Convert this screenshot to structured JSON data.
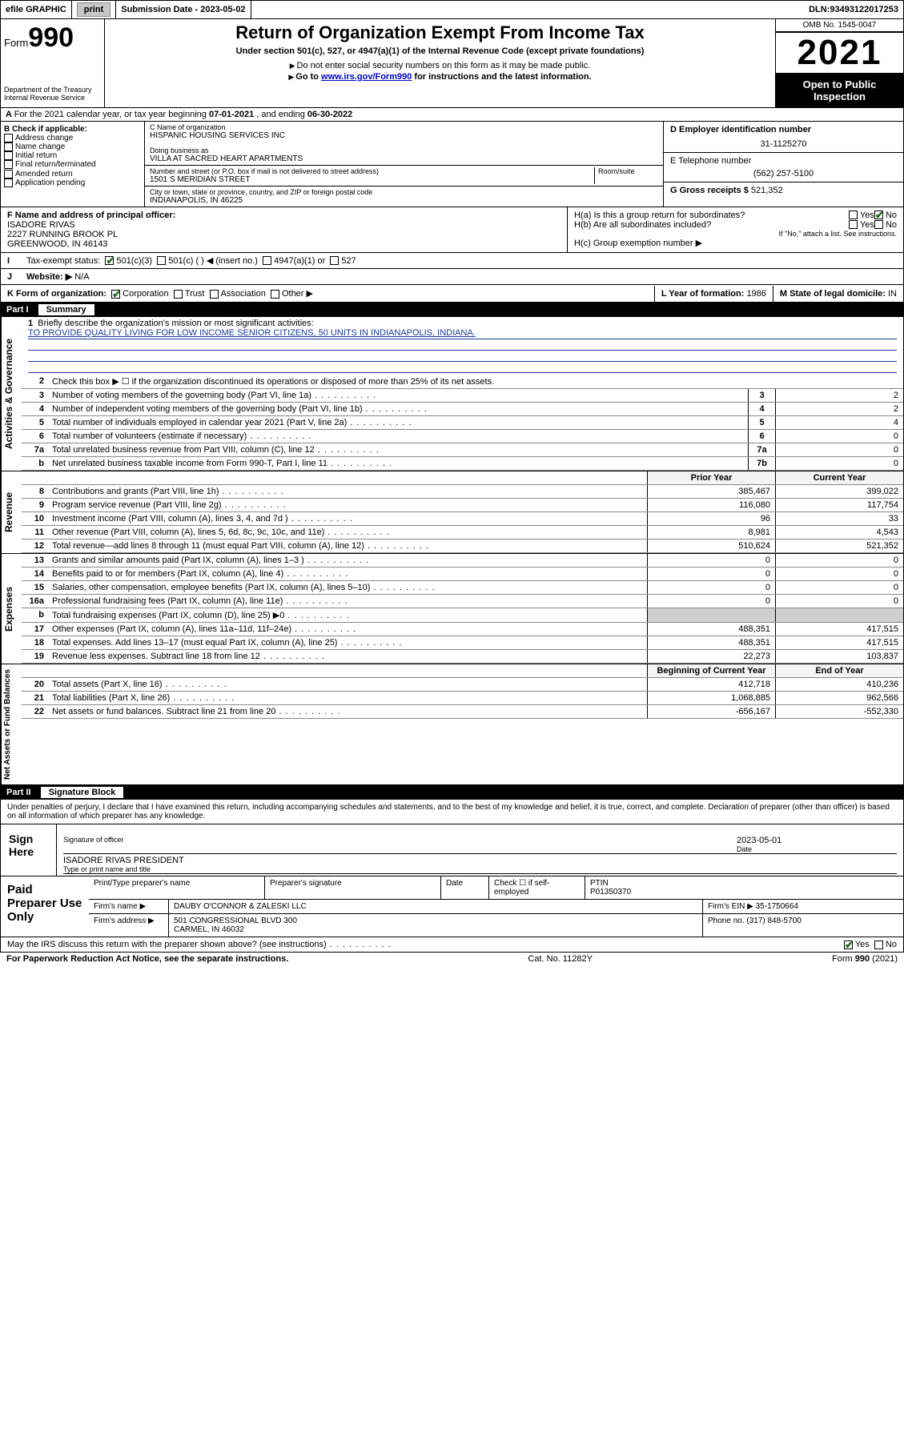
{
  "topbar": {
    "efile": "efile GRAPHIC",
    "print": "print",
    "subdate_label": "Submission Date - ",
    "subdate": "2023-05-02",
    "dln_label": "DLN: ",
    "dln": "93493122017253"
  },
  "header": {
    "form_word": "Form",
    "form_num": "990",
    "dept": "Department of the Treasury",
    "irs": "Internal Revenue Service",
    "title": "Return of Organization Exempt From Income Tax",
    "subtitle": "Under section 501(c), 527, or 4947(a)(1) of the Internal Revenue Code (except private foundations)",
    "note1": "Do not enter social security numbers on this form as it may be made public.",
    "note2_pre": "Go to ",
    "note2_link": "www.irs.gov/Form990",
    "note2_post": " for instructions and the latest information.",
    "omb": "OMB No. 1545-0047",
    "year": "2021",
    "otp": "Open to Public Inspection"
  },
  "rowA": {
    "text_pre": "For the 2021 calendar year, or tax year beginning ",
    "begin": "07-01-2021",
    "mid": " , and ending ",
    "end": "06-30-2022"
  },
  "colB": {
    "hdr": "B Check if applicable:",
    "items": [
      "Address change",
      "Name change",
      "Initial return",
      "Final return/terminated",
      "Amended return",
      "Application pending"
    ]
  },
  "colC": {
    "name_label": "C Name of organization",
    "name": "HISPANIC HOUSING SERVICES INC",
    "dba_label": "Doing business as",
    "dba": "VILLA AT SACRED HEART APARTMENTS",
    "street_label": "Number and street (or P.O. box if mail is not delivered to street address)",
    "room_label": "Room/suite",
    "street": "1501 S MERIDIAN STREET",
    "city_label": "City or town, state or province, country, and ZIP or foreign postal code",
    "city": "INDIANAPOLIS, IN  46225"
  },
  "colDE": {
    "d_label": "D Employer identification number",
    "d_val": "31-1125270",
    "e_label": "E Telephone number",
    "e_val": "(562) 257-5100",
    "g_label": "G Gross receipts $ ",
    "g_val": "521,352"
  },
  "rowF": {
    "f_label": "F Name and address of principal officer:",
    "f_name": "ISADORE RIVAS",
    "f_addr1": "2227 RUNNING BROOK PL",
    "f_addr2": "GREENWOOD, IN  46143",
    "ha": "H(a)  Is this a group return for subordinates?",
    "hb": "H(b)  Are all subordinates included?",
    "hb_note": "If \"No,\" attach a list. See instructions.",
    "hc": "H(c)  Group exemption number ▶",
    "yes": "Yes",
    "no": "No"
  },
  "rowI": {
    "label": "Tax-exempt status:",
    "o1": "501(c)(3)",
    "o2": "501(c) (   ) ◀ (insert no.)",
    "o3": "4947(a)(1) or",
    "o4": "527"
  },
  "rowJ": {
    "label": "Website: ▶",
    "val": "N/A"
  },
  "rowK": {
    "k": "K Form of organization:",
    "o1": "Corporation",
    "o2": "Trust",
    "o3": "Association",
    "o4": "Other ▶",
    "l": "L Year of formation: ",
    "l_val": "1986",
    "m": "M State of legal domicile: ",
    "m_val": "IN"
  },
  "part1": {
    "name": "Part I",
    "title": "Summary"
  },
  "mission": {
    "num": "1",
    "label": "Briefly describe the organization's mission or most significant activities:",
    "text": "TO PROVIDE QUALITY LIVING FOR LOW INCOME SENIOR CITIZENS, 50 UNITS IN INDIANAPOLIS, INDIANA."
  },
  "lines_top": [
    {
      "n": "2",
      "t": "Check this box ▶ ☐  if the organization discontinued its operations or disposed of more than 25% of its net assets."
    },
    {
      "n": "3",
      "t": "Number of voting members of the governing body (Part VI, line 1a)",
      "box": "3",
      "v": "2"
    },
    {
      "n": "4",
      "t": "Number of independent voting members of the governing body (Part VI, line 1b)",
      "box": "4",
      "v": "2"
    },
    {
      "n": "5",
      "t": "Total number of individuals employed in calendar year 2021 (Part V, line 2a)",
      "box": "5",
      "v": "4"
    },
    {
      "n": "6",
      "t": "Total number of volunteers (estimate if necessary)",
      "box": "6",
      "v": "0"
    },
    {
      "n": "7a",
      "t": "Total unrelated business revenue from Part VIII, column (C), line 12",
      "box": "7a",
      "v": "0"
    },
    {
      "n": "b",
      "t": "Net unrelated business taxable income from Form 990-T, Part I, line 11",
      "box": "7b",
      "v": "0"
    }
  ],
  "col_hdrs": {
    "prior": "Prior Year",
    "current": "Current Year"
  },
  "revenue": [
    {
      "n": "8",
      "t": "Contributions and grants (Part VIII, line 1h)",
      "p": "385,467",
      "c": "399,022"
    },
    {
      "n": "9",
      "t": "Program service revenue (Part VIII, line 2g)",
      "p": "116,080",
      "c": "117,754"
    },
    {
      "n": "10",
      "t": "Investment income (Part VIII, column (A), lines 3, 4, and 7d )",
      "p": "96",
      "c": "33"
    },
    {
      "n": "11",
      "t": "Other revenue (Part VIII, column (A), lines 5, 6d, 8c, 9c, 10c, and 11e)",
      "p": "8,981",
      "c": "4,543"
    },
    {
      "n": "12",
      "t": "Total revenue—add lines 8 through 11 (must equal Part VIII, column (A), line 12)",
      "p": "510,624",
      "c": "521,352"
    }
  ],
  "expenses": [
    {
      "n": "13",
      "t": "Grants and similar amounts paid (Part IX, column (A), lines 1–3 )",
      "p": "0",
      "c": "0"
    },
    {
      "n": "14",
      "t": "Benefits paid to or for members (Part IX, column (A), line 4)",
      "p": "0",
      "c": "0"
    },
    {
      "n": "15",
      "t": "Salaries, other compensation, employee benefits (Part IX, column (A), lines 5–10)",
      "p": "0",
      "c": "0"
    },
    {
      "n": "16a",
      "t": "Professional fundraising fees (Part IX, column (A), line 11e)",
      "p": "0",
      "c": "0"
    },
    {
      "n": "b",
      "t": "Total fundraising expenses (Part IX, column (D), line 25) ▶0",
      "p": "",
      "c": "",
      "shade": true
    },
    {
      "n": "17",
      "t": "Other expenses (Part IX, column (A), lines 11a–11d, 11f–24e)",
      "p": "488,351",
      "c": "417,515"
    },
    {
      "n": "18",
      "t": "Total expenses. Add lines 13–17 (must equal Part IX, column (A), line 25)",
      "p": "488,351",
      "c": "417,515"
    },
    {
      "n": "19",
      "t": "Revenue less expenses. Subtract line 18 from line 12",
      "p": "22,273",
      "c": "103,837"
    }
  ],
  "net_hdrs": {
    "begin": "Beginning of Current Year",
    "end": "End of Year"
  },
  "netassets": [
    {
      "n": "20",
      "t": "Total assets (Part X, line 16)",
      "p": "412,718",
      "c": "410,236"
    },
    {
      "n": "21",
      "t": "Total liabilities (Part X, line 26)",
      "p": "1,068,885",
      "c": "962,566"
    },
    {
      "n": "22",
      "t": "Net assets or fund balances. Subtract line 21 from line 20",
      "p": "-656,167",
      "c": "-552,330"
    }
  ],
  "vtabs": {
    "ag": "Activities & Governance",
    "rev": "Revenue",
    "exp": "Expenses",
    "na": "Net Assets or Fund Balances"
  },
  "part2": {
    "name": "Part II",
    "title": "Signature Block"
  },
  "sig": {
    "declare": "Under penalties of perjury, I declare that I have examined this return, including accompanying schedules and statements, and to the best of my knowledge and belief, it is true, correct, and complete. Declaration of preparer (other than officer) is based on all information of which preparer has any knowledge.",
    "sign_here": "Sign Here",
    "sig_officer": "Signature of officer",
    "date_label": "Date",
    "date": "2023-05-01",
    "name_title": "ISADORE RIVAS  PRESIDENT",
    "name_title_label": "Type or print name and title"
  },
  "paid": {
    "label": "Paid Preparer Use Only",
    "h1": "Print/Type preparer's name",
    "h2": "Preparer's signature",
    "h3": "Date",
    "h4a": "Check ☐ if self-employed",
    "h4b": "PTIN",
    "ptin": "P01350370",
    "firm_name_l": "Firm's name    ▶",
    "firm_name": "DAUBY O'CONNOR & ZALESKI LLC",
    "firm_ein_l": "Firm's EIN ▶ ",
    "firm_ein": "35-1750664",
    "firm_addr_l": "Firm's address ▶",
    "firm_addr1": "501 CONGRESSIONAL BLVD 300",
    "firm_addr2": "CARMEL, IN  46032",
    "phone_l": "Phone no. ",
    "phone": "(317) 848-5700",
    "discuss": "May the IRS discuss this return with the preparer shown above? (see instructions)"
  },
  "footer": {
    "left": "For Paperwork Reduction Act Notice, see the separate instructions.",
    "mid": "Cat. No. 11282Y",
    "right": "Form 990 (2021)"
  }
}
